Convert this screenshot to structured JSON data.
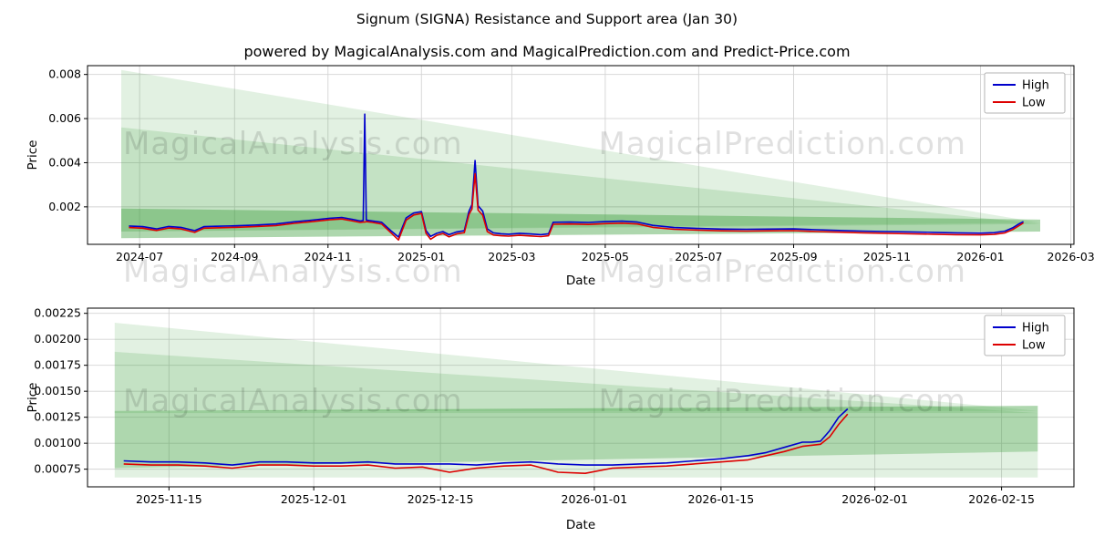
{
  "page": {
    "title": "Signum (SIGNA) Resistance and Support area (Jan 30)",
    "subtitle": "powered by MagicalAnalysis.com and MagicalPrediction.com and Predict-Price.com"
  },
  "watermarks": {
    "left": "MagicalAnalysis.com",
    "right": "MagicalPrediction.com"
  },
  "colors": {
    "high_line": "#0000cc",
    "low_line": "#dd0000",
    "support_fill": "#3fa03f",
    "grid": "#d3d3d3",
    "axis": "#000000",
    "legend_border": "#b3b3b3"
  },
  "chart_data": [
    {
      "type": "line",
      "title": "",
      "xlabel": "Date",
      "ylabel": "Price",
      "legend": {
        "position": "upper right",
        "entries": [
          "High",
          "Low"
        ]
      },
      "grid": true,
      "xlim": [
        "2024-05-28",
        "2026-03-03"
      ],
      "ylim": [
        0.0003,
        0.0084
      ],
      "xticks": [
        {
          "v": "2024-07-01",
          "label": "2024-07"
        },
        {
          "v": "2024-09-01",
          "label": "2024-09"
        },
        {
          "v": "2024-11-01",
          "label": "2024-11"
        },
        {
          "v": "2025-01-01",
          "label": "2025-01"
        },
        {
          "v": "2025-03-01",
          "label": "2025-03"
        },
        {
          "v": "2025-05-01",
          "label": "2025-05"
        },
        {
          "v": "2025-07-01",
          "label": "2025-07"
        },
        {
          "v": "2025-09-01",
          "label": "2025-09"
        },
        {
          "v": "2025-11-01",
          "label": "2025-11"
        },
        {
          "v": "2026-01-01",
          "label": "2026-01"
        },
        {
          "v": "2026-03-01",
          "label": "2026-03"
        }
      ],
      "yticks": [
        {
          "v": 0.002,
          "label": "0.002"
        },
        {
          "v": 0.004,
          "label": "0.004"
        },
        {
          "v": 0.006,
          "label": "0.006"
        },
        {
          "v": 0.008,
          "label": "0.008"
        }
      ],
      "areas": [
        {
          "name": "resistance-wedge-outer",
          "opacity": 0.15,
          "points": [
            [
              "2024-06-19",
              0.0082
            ],
            [
              "2026-02-09",
              0.00128
            ],
            [
              "2024-06-19",
              0.00088
            ]
          ]
        },
        {
          "name": "resistance-wedge-inner",
          "opacity": 0.18,
          "points": [
            [
              "2024-06-19",
              0.0056
            ],
            [
              "2026-02-09",
              0.00122
            ],
            [
              "2024-06-19",
              0.00088
            ]
          ]
        },
        {
          "name": "support-band",
          "opacity": 0.42,
          "points": [
            [
              "2024-06-19",
              0.00192
            ],
            [
              "2026-02-09",
              0.00142
            ],
            [
              "2026-02-09",
              0.00088
            ],
            [
              "2024-06-19",
              0.00058
            ]
          ]
        }
      ],
      "series": [
        {
          "name": "High",
          "color_key": "high_line",
          "x": [
            "2024-06-24",
            "2024-07-03",
            "2024-07-12",
            "2024-07-20",
            "2024-07-28",
            "2024-08-06",
            "2024-08-12",
            "2024-08-20",
            "2024-09-01",
            "2024-09-14",
            "2024-09-28",
            "2024-10-10",
            "2024-10-22",
            "2024-11-02",
            "2024-11-10",
            "2024-11-17",
            "2024-11-22",
            "2024-11-24",
            "2024-11-25",
            "2024-11-26",
            "2024-11-30",
            "2024-12-06",
            "2024-12-12",
            "2024-12-17",
            "2024-12-22",
            "2024-12-27",
            "2025-01-01",
            "2025-01-04",
            "2025-01-07",
            "2025-01-11",
            "2025-01-15",
            "2025-01-19",
            "2025-01-24",
            "2025-01-29",
            "2025-02-01",
            "2025-02-03",
            "2025-02-05",
            "2025-02-07",
            "2025-02-10",
            "2025-02-13",
            "2025-02-17",
            "2025-02-22",
            "2025-02-27",
            "2025-03-06",
            "2025-03-13",
            "2025-03-20",
            "2025-03-25",
            "2025-03-28",
            "2025-04-08",
            "2025-04-20",
            "2025-05-01",
            "2025-05-12",
            "2025-05-22",
            "2025-06-01",
            "2025-06-15",
            "2025-07-01",
            "2025-07-16",
            "2025-08-01",
            "2025-08-16",
            "2025-09-01",
            "2025-09-16",
            "2025-10-01",
            "2025-10-16",
            "2025-11-01",
            "2025-11-16",
            "2025-12-01",
            "2025-12-16",
            "2026-01-01",
            "2026-01-10",
            "2026-01-17",
            "2026-01-22",
            "2026-01-26",
            "2026-01-29"
          ],
          "y": [
            0.00113,
            0.0011,
            0.001,
            0.00111,
            0.00107,
            0.00092,
            0.0011,
            0.00112,
            0.00114,
            0.00117,
            0.00122,
            0.00132,
            0.0014,
            0.00148,
            0.00152,
            0.00143,
            0.00136,
            0.00138,
            0.0062,
            0.0014,
            0.00136,
            0.0013,
            0.00092,
            0.00063,
            0.0015,
            0.00172,
            0.00178,
            0.00092,
            0.00066,
            0.0008,
            0.00088,
            0.00074,
            0.00086,
            0.00092,
            0.0018,
            0.0021,
            0.0041,
            0.00205,
            0.0018,
            0.001,
            0.00082,
            0.00078,
            0.00076,
            0.0008,
            0.00077,
            0.00074,
            0.00078,
            0.0013,
            0.00131,
            0.00129,
            0.00133,
            0.00135,
            0.00131,
            0.00116,
            0.00106,
            0.00102,
            0.00099,
            0.00098,
            0.00099,
            0.001,
            0.00096,
            0.00093,
            0.0009,
            0.00088,
            0.00086,
            0.00084,
            0.00082,
            0.00081,
            0.00083,
            0.0009,
            0.00105,
            0.00122,
            0.00133
          ]
        },
        {
          "name": "Low",
          "color_key": "low_line",
          "x": [
            "2024-06-24",
            "2024-07-03",
            "2024-07-12",
            "2024-07-20",
            "2024-07-28",
            "2024-08-06",
            "2024-08-12",
            "2024-08-20",
            "2024-09-01",
            "2024-09-14",
            "2024-09-28",
            "2024-10-10",
            "2024-10-22",
            "2024-11-02",
            "2024-11-10",
            "2024-11-17",
            "2024-11-22",
            "2024-11-24",
            "2024-11-25",
            "2024-11-26",
            "2024-11-30",
            "2024-12-06",
            "2024-12-12",
            "2024-12-17",
            "2024-12-22",
            "2024-12-27",
            "2025-01-01",
            "2025-01-04",
            "2025-01-07",
            "2025-01-11",
            "2025-01-15",
            "2025-01-19",
            "2025-01-24",
            "2025-01-29",
            "2025-02-01",
            "2025-02-03",
            "2025-02-05",
            "2025-02-07",
            "2025-02-10",
            "2025-02-13",
            "2025-02-17",
            "2025-02-22",
            "2025-02-27",
            "2025-03-06",
            "2025-03-13",
            "2025-03-20",
            "2025-03-25",
            "2025-03-28",
            "2025-04-08",
            "2025-04-20",
            "2025-05-01",
            "2025-05-12",
            "2025-05-22",
            "2025-06-01",
            "2025-06-15",
            "2025-07-01",
            "2025-07-16",
            "2025-08-01",
            "2025-08-16",
            "2025-09-01",
            "2025-09-16",
            "2025-10-01",
            "2025-10-16",
            "2025-11-01",
            "2025-11-16",
            "2025-12-01",
            "2025-12-16",
            "2026-01-01",
            "2026-01-10",
            "2026-01-17",
            "2026-01-22",
            "2026-01-26",
            "2026-01-29"
          ],
          "y": [
            0.00106,
            0.00103,
            0.00093,
            0.00104,
            0.001,
            0.00084,
            0.00103,
            0.00105,
            0.00107,
            0.0011,
            0.00115,
            0.00125,
            0.00133,
            0.00141,
            0.00145,
            0.00136,
            0.00129,
            0.00131,
            0.00131,
            0.00133,
            0.00129,
            0.00122,
            0.00083,
            0.0005,
            0.0014,
            0.00163,
            0.0017,
            0.0008,
            0.00053,
            0.00071,
            0.00079,
            0.00064,
            0.00077,
            0.00083,
            0.00165,
            0.0019,
            0.0035,
            0.00185,
            0.00162,
            0.00088,
            0.00072,
            0.00069,
            0.00067,
            0.00071,
            0.00068,
            0.00065,
            0.00069,
            0.00121,
            0.00122,
            0.0012,
            0.00124,
            0.00126,
            0.00122,
            0.00107,
            0.00098,
            0.00094,
            0.00091,
            0.0009,
            0.00091,
            0.00092,
            0.00088,
            0.00085,
            0.00082,
            0.0008,
            0.00078,
            0.00076,
            0.00074,
            0.00073,
            0.00075,
            0.00082,
            0.00097,
            0.00114,
            0.00127
          ]
        }
      ]
    },
    {
      "type": "line",
      "title": "",
      "xlabel": "Date",
      "ylabel": "Price",
      "legend": {
        "position": "upper right",
        "entries": [
          "High",
          "Low"
        ]
      },
      "grid": true,
      "xlim": [
        "2025-11-06",
        "2026-02-23"
      ],
      "ylim": [
        0.00058,
        0.0023
      ],
      "xticks": [
        {
          "v": "2025-11-15",
          "label": "2025-11-15"
        },
        {
          "v": "2025-12-01",
          "label": "2025-12-01"
        },
        {
          "v": "2025-12-15",
          "label": "2025-12-15"
        },
        {
          "v": "2026-01-01",
          "label": "2026-01-01"
        },
        {
          "v": "2026-01-15",
          "label": "2026-01-15"
        },
        {
          "v": "2026-02-01",
          "label": "2026-02-01"
        },
        {
          "v": "2026-02-15",
          "label": "2026-02-15"
        }
      ],
      "yticks": [
        {
          "v": 0.00075,
          "label": "0.00075"
        },
        {
          "v": 0.001,
          "label": "0.00100"
        },
        {
          "v": 0.00125,
          "label": "0.00125"
        },
        {
          "v": 0.0015,
          "label": "0.00150"
        },
        {
          "v": 0.00175,
          "label": "0.00175"
        },
        {
          "v": 0.002,
          "label": "0.00200"
        },
        {
          "v": 0.00225,
          "label": "0.00225"
        }
      ],
      "areas": [
        {
          "name": "resistance-wedge-outer",
          "opacity": 0.15,
          "points": [
            [
              "2025-11-09",
              0.00216
            ],
            [
              "2026-02-19",
              0.00131
            ],
            [
              "2025-11-09",
              0.00131
            ]
          ]
        },
        {
          "name": "resistance-wedge-inner",
          "opacity": 0.18,
          "points": [
            [
              "2025-11-09",
              0.00188
            ],
            [
              "2026-02-19",
              0.00129
            ],
            [
              "2025-11-09",
              0.00129
            ]
          ]
        },
        {
          "name": "support-band",
          "opacity": 0.42,
          "points": [
            [
              "2025-11-09",
              0.00131
            ],
            [
              "2026-02-19",
              0.00136
            ],
            [
              "2026-02-19",
              0.00092
            ],
            [
              "2025-11-09",
              0.00076
            ]
          ]
        },
        {
          "name": "support-band-lower",
          "opacity": 0.15,
          "points": [
            [
              "2025-11-09",
              0.00076
            ],
            [
              "2026-02-19",
              0.00092
            ],
            [
              "2026-02-19",
              0.00067
            ],
            [
              "2025-11-09",
              0.00067
            ]
          ]
        }
      ],
      "series": [
        {
          "name": "High",
          "color_key": "high_line",
          "x": [
            "2025-11-10",
            "2025-11-13",
            "2025-11-16",
            "2025-11-19",
            "2025-11-22",
            "2025-11-25",
            "2025-11-28",
            "2025-12-01",
            "2025-12-04",
            "2025-12-07",
            "2025-12-10",
            "2025-12-13",
            "2025-12-16",
            "2025-12-19",
            "2025-12-22",
            "2025-12-25",
            "2025-12-28",
            "2025-12-31",
            "2026-01-03",
            "2026-01-06",
            "2026-01-09",
            "2026-01-12",
            "2026-01-15",
            "2026-01-18",
            "2026-01-20",
            "2026-01-22",
            "2026-01-24",
            "2026-01-25",
            "2026-01-26",
            "2026-01-27",
            "2026-01-28",
            "2026-01-29"
          ],
          "y": [
            0.00083,
            0.00082,
            0.00082,
            0.00081,
            0.00079,
            0.00082,
            0.00082,
            0.00081,
            0.00081,
            0.00082,
            0.0008,
            0.0008,
            0.0008,
            0.00079,
            0.00081,
            0.00082,
            0.0008,
            0.00079,
            0.00079,
            0.0008,
            0.00081,
            0.00083,
            0.00085,
            0.00088,
            0.00091,
            0.00096,
            0.00101,
            0.00101,
            0.00102,
            0.00112,
            0.00125,
            0.00133
          ]
        },
        {
          "name": "Low",
          "color_key": "low_line",
          "x": [
            "2025-11-10",
            "2025-11-13",
            "2025-11-16",
            "2025-11-19",
            "2025-11-22",
            "2025-11-25",
            "2025-11-28",
            "2025-12-01",
            "2025-12-04",
            "2025-12-07",
            "2025-12-10",
            "2025-12-13",
            "2025-12-16",
            "2025-12-19",
            "2025-12-22",
            "2025-12-25",
            "2025-12-28",
            "2025-12-31",
            "2026-01-03",
            "2026-01-06",
            "2026-01-09",
            "2026-01-12",
            "2026-01-15",
            "2026-01-18",
            "2026-01-20",
            "2026-01-22",
            "2026-01-24",
            "2026-01-25",
            "2026-01-26",
            "2026-01-27",
            "2026-01-28",
            "2026-01-29"
          ],
          "y": [
            0.0008,
            0.00079,
            0.00079,
            0.00078,
            0.00076,
            0.00079,
            0.00079,
            0.00078,
            0.00078,
            0.00079,
            0.00076,
            0.00077,
            0.00072,
            0.00076,
            0.00078,
            0.00079,
            0.00072,
            0.00071,
            0.00076,
            0.00077,
            0.00078,
            0.0008,
            0.00082,
            0.00084,
            0.00088,
            0.00092,
            0.00097,
            0.00098,
            0.00099,
            0.00106,
            0.00118,
            0.00128
          ]
        }
      ]
    }
  ]
}
